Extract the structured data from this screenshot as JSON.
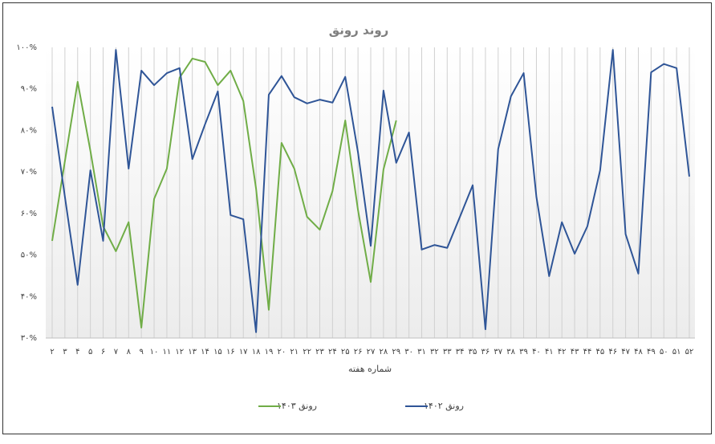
{
  "chart_data": {
    "type": "line",
    "title": "روند رونق",
    "x_label": "شماره هفته",
    "categories": [
      "۲",
      "۳",
      "۴",
      "۵",
      "۶",
      "۷",
      "۸",
      "۹",
      "۱۰",
      "۱۱",
      "۱۲",
      "۱۳",
      "۱۴",
      "۱۵",
      "۱۶",
      "۱۷",
      "۱۸",
      "۱۹",
      "۲۰",
      "۲۱",
      "۲۲",
      "۲۳",
      "۲۴",
      "۲۵",
      "۲۶",
      "۲۷",
      "۲۸",
      "۲۹",
      "۳۰",
      "۳۱",
      "۳۲",
      "۳۳",
      "۳۴",
      "۳۵",
      "۳۶",
      "۳۷",
      "۳۸",
      "۳۹",
      "۴۰",
      "۴۱",
      "۴۲",
      "۴۳",
      "۴۴",
      "۴۵",
      "۴۶",
      "۴۷",
      "۴۸",
      "۴۹",
      "۵۰",
      "۵۱",
      "۵۲"
    ],
    "series": [
      {
        "name": "رونق ۱۴۰۳",
        "color": "#70ad47",
        "values": [
          53.4,
          72.6,
          91.7,
          75.1,
          56.9,
          50.9,
          57.9,
          32.5,
          63.5,
          70.8,
          92.7,
          97.3,
          96.5,
          90.9,
          94.4,
          87.1,
          66,
          36.8,
          77,
          70.8,
          59.2,
          56.1,
          65.4,
          82.4,
          60.8,
          43.5,
          70.6,
          82.4,
          null,
          null,
          null,
          null,
          null,
          null,
          null,
          null,
          null,
          null,
          null,
          null,
          null,
          null,
          null,
          null,
          null,
          null,
          null,
          null,
          null,
          null,
          null
        ]
      },
      {
        "name": "رونق ۱۴۰۲",
        "color": "#2f5597",
        "values": [
          85.7,
          64,
          42.8,
          70.4,
          53.4,
          99.4,
          70.8,
          94.4,
          90.9,
          93.8,
          95,
          73.1,
          81.5,
          89.4,
          59.6,
          58.6,
          31.4,
          88.6,
          93.1,
          88,
          86.5,
          87.4,
          86.7,
          92.9,
          74.7,
          52.2,
          89.6,
          72.2,
          79.5,
          51.3,
          52.4,
          51.7,
          59.2,
          66.8,
          32.1,
          75.5,
          88.2,
          93.8,
          64,
          44.9,
          57.9,
          50.3,
          56.9,
          70.4,
          99.4,
          55,
          45.5,
          94,
          96,
          95,
          68.9
        ]
      }
    ],
    "ylim": [
      30,
      100
    ],
    "yticks": [
      {
        "value": 30,
        "label": "۳۰%"
      },
      {
        "value": 40,
        "label": "۴۰%"
      },
      {
        "value": 50,
        "label": "۵۰%"
      },
      {
        "value": 60,
        "label": "۶۰%"
      },
      {
        "value": 70,
        "label": "۷۰%"
      },
      {
        "value": 80,
        "label": "۸۰%"
      },
      {
        "value": 90,
        "label": "۹۰%"
      },
      {
        "value": 100,
        "label": "۱۰۰%"
      }
    ],
    "grid": "x",
    "legend": "bottom"
  }
}
